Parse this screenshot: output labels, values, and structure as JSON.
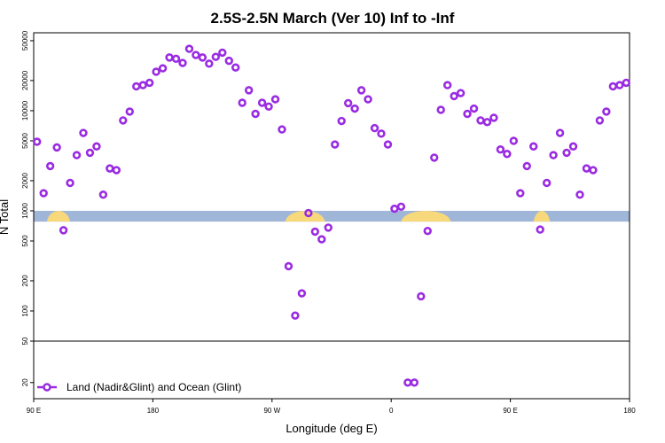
{
  "chart_data": {
    "type": "scatter",
    "title": "2.5S-2.5N March (Ver 10)   Inf to -Inf",
    "xlabel": "Longitude (deg E)",
    "ylabel": "N Total",
    "xlim": [
      0,
      360
    ],
    "x_ticks": [
      {
        "x": 0,
        "label": "90 E"
      },
      {
        "x": 72,
        "label": "180"
      },
      {
        "x": 144,
        "label": "90 W"
      },
      {
        "x": 216,
        "label": "0"
      },
      {
        "x": 288,
        "label": "90 E"
      },
      {
        "x": 360,
        "label": "180"
      }
    ],
    "y_scale": "log",
    "upper_panel": {
      "ylim": [
        50,
        60000
      ],
      "y_ticks": [
        {
          "value": 50000,
          "label": "50000"
        },
        {
          "value": 20000,
          "label": "20000"
        },
        {
          "value": 10000,
          "label": "10000"
        },
        {
          "value": 5000,
          "label": "5000"
        },
        {
          "value": 2000,
          "label": "2000"
        },
        {
          "value": 1000,
          "label": "1000"
        },
        {
          "value": 500,
          "label": "500"
        },
        {
          "value": 200,
          "label": "200"
        },
        {
          "value": 100,
          "label": "100"
        },
        {
          "value": 50,
          "label": "50"
        }
      ]
    },
    "lower_panel": {
      "ylim": [
        14,
        50
      ],
      "y_ticks": [
        {
          "value": 50,
          "label": "50"
        },
        {
          "value": 20,
          "label": "20"
        }
      ]
    },
    "band": {
      "y_low": 780,
      "y_high": 1000,
      "ocean_color": "#9fb6d9",
      "land_color": "#f7d87a",
      "land_x": [
        [
          8,
          22
        ],
        [
          302,
          312
        ],
        [
          152,
          176
        ],
        [
          222,
          252
        ]
      ]
    },
    "series": [
      {
        "name": "Land (Nadir&Glint) and Ocean (Glint)",
        "color": "#9a2be2",
        "marker": "open-circle",
        "x": [
          2,
          6,
          10,
          14,
          18,
          22,
          26,
          30,
          34,
          38,
          42,
          46,
          50,
          54,
          58,
          62,
          66,
          70,
          74,
          78,
          82,
          86,
          90,
          94,
          98,
          102,
          106,
          110,
          114,
          118,
          122,
          126,
          130,
          134,
          138,
          142,
          146,
          150,
          154,
          158,
          162,
          166,
          170,
          174,
          178,
          182,
          186,
          190,
          194,
          198,
          202,
          206,
          210,
          214,
          218,
          222,
          226,
          230,
          234,
          238,
          242,
          246,
          250,
          254,
          258,
          262,
          266,
          270,
          274,
          278,
          282,
          286,
          290,
          294,
          298,
          302,
          306,
          310,
          314,
          318,
          322,
          326,
          330,
          334,
          338,
          342,
          346,
          350,
          354,
          358
        ],
        "y": [
          4900,
          1500,
          2800,
          4300,
          640,
          1900,
          3600,
          6000,
          3800,
          4400,
          1450,
          2650,
          2550,
          8000,
          9800,
          17500,
          18000,
          19000,
          24500,
          26500,
          34000,
          33000,
          30000,
          41500,
          36000,
          34000,
          29500,
          34500,
          38000,
          31500,
          27000,
          12000,
          16000,
          9300,
          12000,
          11000,
          13000,
          6500,
          280,
          90,
          150,
          950,
          620,
          520,
          680,
          4600,
          7900,
          11900,
          10500,
          16000,
          13000,
          6700,
          5900,
          4600,
          1050,
          1100,
          20,
          20,
          140,
          630,
          3400,
          10200,
          18000,
          14000,
          15000,
          9300,
          10500,
          8000,
          7700,
          8500,
          4100,
          3700,
          5000,
          1500,
          2800,
          4400,
          650,
          1900,
          3600,
          6000,
          3800,
          4400,
          1450,
          2650,
          2550,
          8000,
          9800,
          17500,
          18000,
          19000
        ]
      }
    ],
    "legend": {
      "position": "bottom-left",
      "label": "Land (Nadir&Glint) and Ocean (Glint)"
    }
  }
}
